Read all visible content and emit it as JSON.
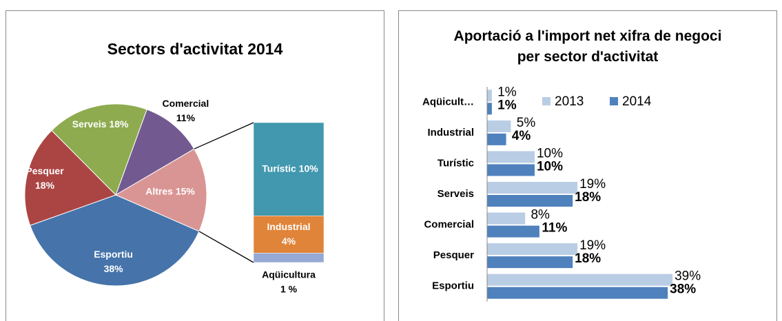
{
  "chart_data": [
    {
      "type": "pie",
      "title": "Sectors d'activitat 2014",
      "categories": [
        "Comercial",
        "Altres",
        "Esportiu",
        "Pesquer",
        "Serveis"
      ],
      "values": [
        11,
        15,
        38,
        18,
        18
      ],
      "value_labels": [
        "11%",
        "15%",
        "38%",
        "18%",
        "18%"
      ],
      "colors": [
        "#725a91",
        "#d99594",
        "#4674aa",
        "#ab4544",
        "#8eab4f"
      ],
      "secondary": {
        "categories": [
          "Turístic",
          "Industrial",
          "Aqüicultura"
        ],
        "values": [
          10,
          4,
          1
        ],
        "value_labels": [
          "10%",
          "4%",
          "1 %"
        ],
        "colors": [
          "#4198af",
          "#e0843a",
          "#95a9d4"
        ]
      }
    },
    {
      "type": "hbar",
      "title": "Aportació a l'import net xifra de negoci per sector d'activitat",
      "categories": [
        "Aqüicult…",
        "Industrial",
        "Turístic",
        "Serveis",
        "Comercial",
        "Pesquer",
        "Esportiu"
      ],
      "series": [
        {
          "name": "2013",
          "color": "#b9cde5",
          "values": [
            1,
            5,
            10,
            19,
            8,
            19,
            39
          ],
          "value_labels": [
            "1%",
            "5%",
            "10%",
            "19%",
            "8%",
            "19%",
            "39%"
          ]
        },
        {
          "name": "2014",
          "color": "#4f81bd",
          "values": [
            1,
            4,
            10,
            18,
            11,
            18,
            38
          ],
          "value_labels": [
            "1%",
            "4%",
            "10%",
            "18%",
            "11%",
            "18%",
            "38%"
          ]
        }
      ],
      "xlim": [
        0,
        40
      ],
      "legend": "top"
    }
  ]
}
